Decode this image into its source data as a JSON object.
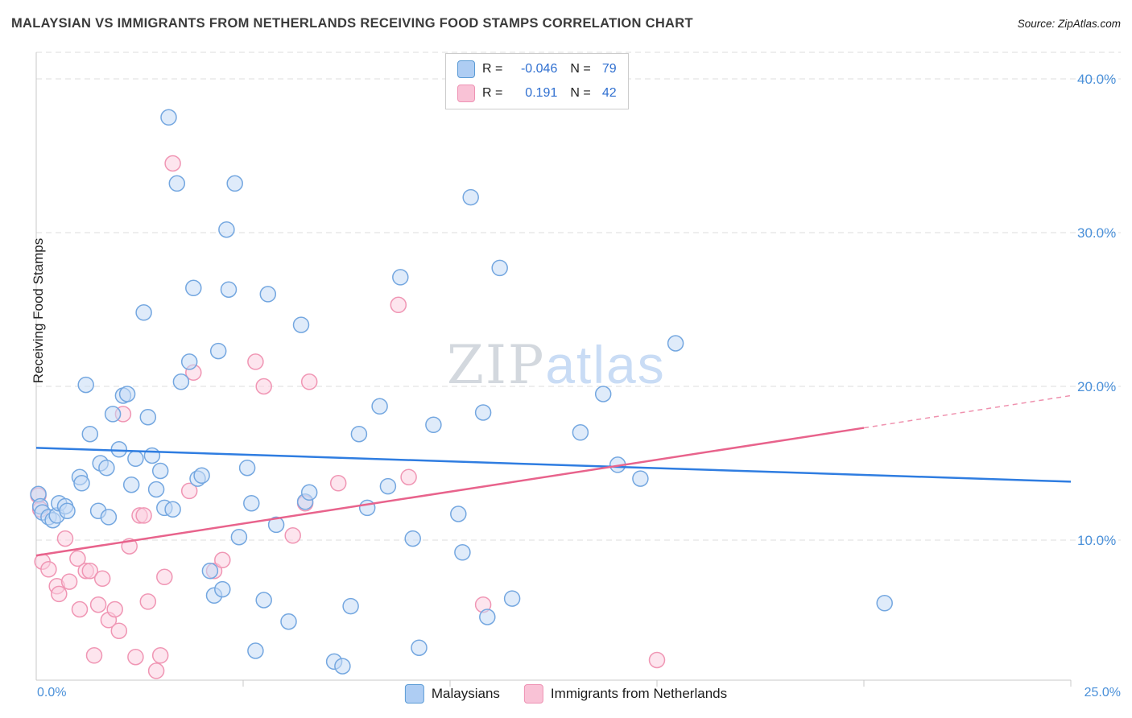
{
  "header": {
    "title": "MALAYSIAN VS IMMIGRANTS FROM NETHERLANDS RECEIVING FOOD STAMPS CORRELATION CHART",
    "source": "Source: ZipAtlas.com"
  },
  "legend_box": {
    "rows": [
      {
        "r_label": "R =",
        "r_value": "-0.046",
        "n_label": "N =",
        "n_value": "79"
      },
      {
        "r_label": "R =",
        "r_value": "0.191",
        "n_label": "N =",
        "n_value": "42"
      }
    ]
  },
  "watermark": {
    "zip": "ZIP",
    "atlas": "atlas"
  },
  "colors": {
    "blue_line": "#2f7de1",
    "blue_stroke": "#74a7e0",
    "blue_fill": "#c4dbf6",
    "pink_line": "#e8638c",
    "pink_stroke": "#f096b4",
    "pink_fill": "#fbd0e0",
    "axis_label": "#4a90d9"
  },
  "chart_data": {
    "type": "scatter",
    "title": "MALAYSIAN VS IMMIGRANTS FROM NETHERLANDS RECEIVING FOOD STAMPS CORRELATION CHART",
    "ylabel": "Receiving Food Stamps",
    "xlabel_min": "0.0%",
    "xlabel_max": "25.0%",
    "x_range": [
      0,
      25
    ],
    "y_range": [
      0,
      41.7
    ],
    "grid": true,
    "x_ticks": [
      5,
      10,
      15,
      20,
      25
    ],
    "y_ticks": [
      {
        "value": 40,
        "label": "40.0%"
      },
      {
        "value": 30,
        "label": "30.0%"
      },
      {
        "value": 20,
        "label": "20.0%"
      },
      {
        "value": 10,
        "label": "10.0%"
      }
    ],
    "series": [
      {
        "name": "Malaysians",
        "R": -0.046,
        "N": 79,
        "line": "#74a7e0",
        "trend_color": "#2f7de1",
        "fill": "#c4dbf6",
        "trend": {
          "x": [
            0,
            25
          ],
          "y": [
            16.0,
            13.8
          ]
        },
        "points": [
          [
            0.05,
            13.0
          ],
          [
            0.1,
            12.2
          ],
          [
            0.15,
            11.8
          ],
          [
            0.3,
            11.5
          ],
          [
            0.4,
            11.3
          ],
          [
            0.5,
            11.6
          ],
          [
            0.55,
            12.4
          ],
          [
            0.7,
            12.2
          ],
          [
            0.75,
            11.9
          ],
          [
            1.05,
            14.1
          ],
          [
            1.1,
            13.7
          ],
          [
            1.2,
            20.1
          ],
          [
            1.3,
            16.9
          ],
          [
            1.5,
            11.9
          ],
          [
            1.55,
            15.0
          ],
          [
            1.7,
            14.7
          ],
          [
            1.75,
            11.5
          ],
          [
            1.85,
            18.2
          ],
          [
            2.0,
            15.9
          ],
          [
            2.1,
            19.4
          ],
          [
            2.2,
            19.5
          ],
          [
            2.3,
            13.6
          ],
          [
            2.4,
            15.3
          ],
          [
            2.6,
            24.8
          ],
          [
            2.7,
            18.0
          ],
          [
            2.8,
            15.5
          ],
          [
            2.9,
            13.3
          ],
          [
            3.0,
            14.5
          ],
          [
            3.1,
            12.1
          ],
          [
            3.2,
            37.5
          ],
          [
            3.3,
            12.0
          ],
          [
            3.4,
            33.2
          ],
          [
            3.5,
            20.3
          ],
          [
            3.7,
            21.6
          ],
          [
            3.8,
            26.4
          ],
          [
            3.9,
            14.0
          ],
          [
            4.0,
            14.2
          ],
          [
            4.2,
            8.0
          ],
          [
            4.3,
            6.4
          ],
          [
            4.4,
            22.3
          ],
          [
            4.5,
            6.8
          ],
          [
            4.6,
            30.2
          ],
          [
            4.65,
            26.3
          ],
          [
            4.8,
            33.2
          ],
          [
            4.9,
            10.2
          ],
          [
            5.1,
            14.7
          ],
          [
            5.2,
            12.4
          ],
          [
            5.3,
            2.8
          ],
          [
            5.5,
            6.1
          ],
          [
            5.6,
            26.0
          ],
          [
            5.8,
            11.0
          ],
          [
            6.1,
            4.7
          ],
          [
            6.4,
            24.0
          ],
          [
            6.5,
            12.5
          ],
          [
            6.6,
            13.1
          ],
          [
            7.2,
            2.1
          ],
          [
            7.4,
            1.8
          ],
          [
            7.6,
            5.7
          ],
          [
            7.8,
            16.9
          ],
          [
            8.0,
            12.1
          ],
          [
            8.3,
            18.7
          ],
          [
            8.5,
            13.5
          ],
          [
            8.8,
            27.1
          ],
          [
            9.1,
            10.1
          ],
          [
            9.25,
            3.0
          ],
          [
            9.6,
            17.5
          ],
          [
            10.2,
            11.7
          ],
          [
            10.3,
            9.2
          ],
          [
            10.5,
            32.3
          ],
          [
            10.8,
            18.3
          ],
          [
            10.9,
            5.0
          ],
          [
            11.2,
            27.7
          ],
          [
            11.5,
            6.2
          ],
          [
            13.15,
            17.0
          ],
          [
            13.7,
            19.5
          ],
          [
            14.05,
            14.9
          ],
          [
            14.6,
            14.0
          ],
          [
            15.45,
            22.8
          ],
          [
            20.5,
            5.9
          ]
        ]
      },
      {
        "name": "Immigrants from Netherlands",
        "R": 0.191,
        "N": 42,
        "line": "#f096b4",
        "trend_color": "#e8638c",
        "fill": "#fbd0e0",
        "trend": {
          "x": [
            0,
            20
          ],
          "y": [
            9.0,
            17.3
          ]
        },
        "trend_dashed": {
          "x": [
            20,
            25
          ],
          "y": [
            17.3,
            19.4
          ]
        },
        "points": [
          [
            0.05,
            12.9
          ],
          [
            0.1,
            12.0
          ],
          [
            0.15,
            8.6
          ],
          [
            0.3,
            8.1
          ],
          [
            0.5,
            7.0
          ],
          [
            0.55,
            6.5
          ],
          [
            0.7,
            10.1
          ],
          [
            0.8,
            7.3
          ],
          [
            1.0,
            8.8
          ],
          [
            1.05,
            5.5
          ],
          [
            1.2,
            8.0
          ],
          [
            1.3,
            8.0
          ],
          [
            1.4,
            2.5
          ],
          [
            1.5,
            5.8
          ],
          [
            1.6,
            7.5
          ],
          [
            1.75,
            4.8
          ],
          [
            1.9,
            5.5
          ],
          [
            2.0,
            4.1
          ],
          [
            2.1,
            18.2
          ],
          [
            2.25,
            9.6
          ],
          [
            2.4,
            2.4
          ],
          [
            2.5,
            11.6
          ],
          [
            2.6,
            11.6
          ],
          [
            2.7,
            6.0
          ],
          [
            2.9,
            1.5
          ],
          [
            3.0,
            2.5
          ],
          [
            3.1,
            7.6
          ],
          [
            3.3,
            34.5
          ],
          [
            3.7,
            13.2
          ],
          [
            3.8,
            20.9
          ],
          [
            4.3,
            8.0
          ],
          [
            4.5,
            8.7
          ],
          [
            5.3,
            21.6
          ],
          [
            5.5,
            20.0
          ],
          [
            6.2,
            10.3
          ],
          [
            6.5,
            12.4
          ],
          [
            6.6,
            20.3
          ],
          [
            7.3,
            13.7
          ],
          [
            8.75,
            25.3
          ],
          [
            9.0,
            14.1
          ],
          [
            10.8,
            5.8
          ],
          [
            15.0,
            2.2
          ]
        ]
      }
    ],
    "legend_position": "bottom-center"
  }
}
